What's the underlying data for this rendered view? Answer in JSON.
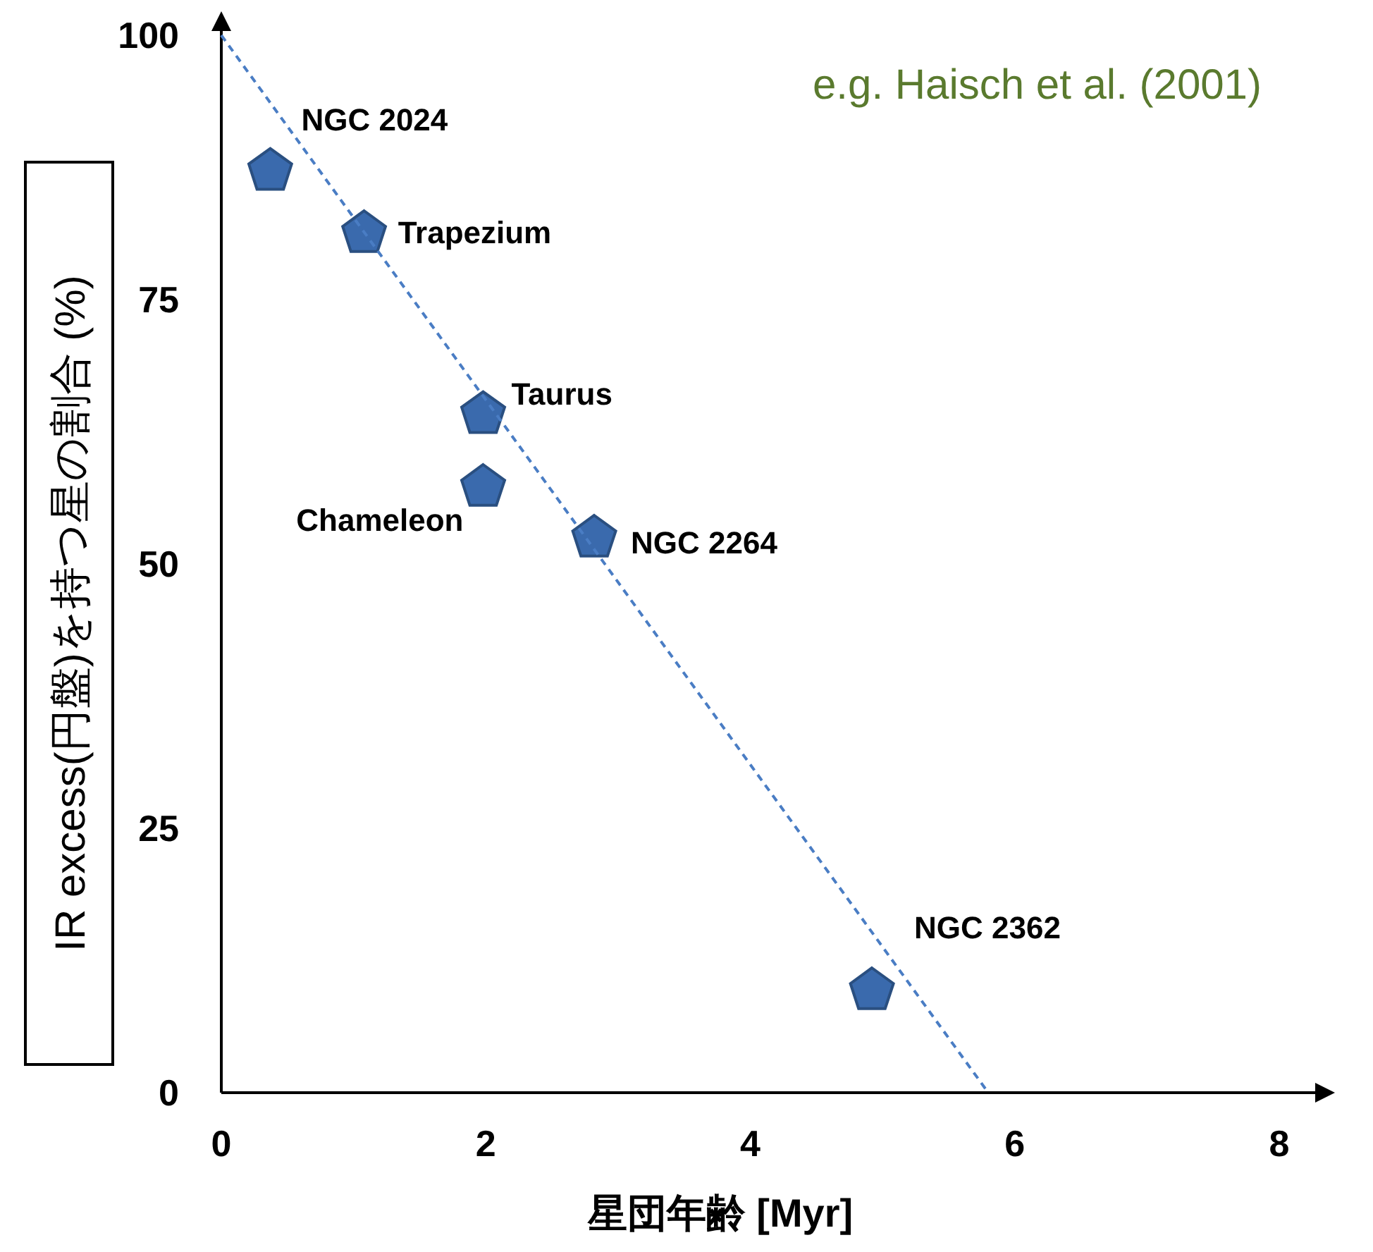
{
  "chart_data": {
    "type": "scatter",
    "xlabel": "星団年齢 [Myr]",
    "ylabel": "IR excess(円盤)を持つ星の割合 (%)",
    "xlim": [
      0,
      8.4
    ],
    "ylim": [
      0,
      102
    ],
    "xticks": [
      0,
      2,
      4,
      6,
      8
    ],
    "yticks": [
      0,
      25,
      50,
      75,
      100
    ],
    "grid": false,
    "series": [
      {
        "color": "#3a6aad",
        "x": [
          0.37,
          1.08,
          1.98,
          1.98,
          2.82,
          4.92
        ],
        "values": [
          87.3,
          81.4,
          64.3,
          57.4,
          52.6,
          9.8
        ]
      },
      {
        "type": "line",
        "color": "#4a7dc4",
        "line_style": "dashed",
        "marker": "none",
        "x": [
          0,
          5.8
        ],
        "values": [
          100,
          0
        ]
      }
    ],
    "annotations": [
      {
        "text": "NGC 2024",
        "x": 0.37,
        "y": 87.3
      },
      {
        "text": "Trapezium",
        "x": 1.08,
        "y": 81.4
      },
      {
        "text": "Taurus",
        "x": 1.98,
        "y": 64.3
      },
      {
        "text": "Chameleon",
        "x": 1.98,
        "y": 57.4
      },
      {
        "text": "NGC 2264",
        "x": 2.82,
        "y": 52.6
      },
      {
        "text": "NGC 2362",
        "x": 4.92,
        "y": 9.8
      },
      "e.g. Haisch et al. (2001)"
    ]
  }
}
